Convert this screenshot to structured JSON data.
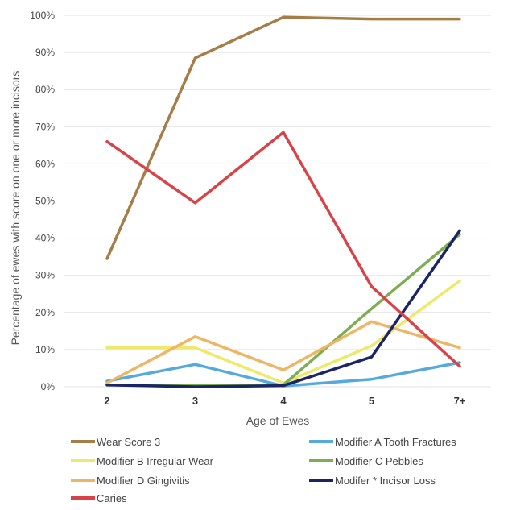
{
  "chart_data": {
    "type": "line",
    "title": "",
    "xlabel": "Age of Ewes",
    "ylabel": "Percentage of ewes with score on one or more incisors",
    "categories": [
      "2",
      "3",
      "4",
      "5",
      "7+"
    ],
    "y_ticks": [
      "0%",
      "10%",
      "20%",
      "30%",
      "40%",
      "50%",
      "60%",
      "70%",
      "80%",
      "90%",
      "100%"
    ],
    "ylim": [
      0,
      100
    ],
    "grid": "horizontal",
    "legend_position": "bottom",
    "series": [
      {
        "name": "Wear Score 3",
        "color": "#A67C47",
        "values": [
          34.5,
          88.5,
          99.5,
          99,
          99
        ]
      },
      {
        "name": "Modifier A Tooth Fractures",
        "color": "#56A9DC",
        "values": [
          1.5,
          6,
          0.2,
          2,
          6.5
        ]
      },
      {
        "name": "Modifier B Irregular Wear",
        "color": "#EDE96A",
        "values": [
          10.5,
          10.5,
          1,
          11,
          28.5
        ]
      },
      {
        "name": "Modifier C Pebbles",
        "color": "#7DAE52",
        "values": [
          0.5,
          0.3,
          0.5,
          21,
          41
        ]
      },
      {
        "name": "Modifier D Gingivitis",
        "color": "#EEB564",
        "values": [
          1,
          13.5,
          4.5,
          17.5,
          10.5
        ]
      },
      {
        "name": "Modifer * Incisor Loss",
        "color": "#1B2466",
        "values": [
          0.5,
          0,
          0.3,
          8,
          42
        ]
      },
      {
        "name": "Caries",
        "color": "#D94348",
        "values": [
          66,
          49.5,
          68.5,
          27,
          5.5
        ]
      }
    ]
  }
}
